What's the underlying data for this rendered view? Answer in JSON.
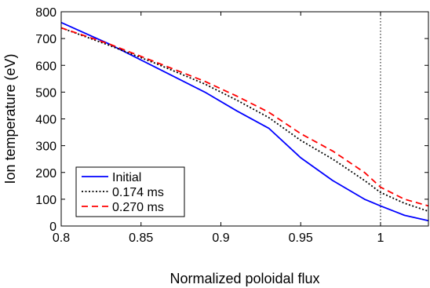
{
  "chart_data": {
    "type": "line",
    "xlabel": "Normalized poloidal flux",
    "ylabel": "Ion temperature (eV)",
    "xlim": [
      0.8,
      1.03
    ],
    "ylim": [
      0,
      800
    ],
    "xticks": [
      0.8,
      0.85,
      0.9,
      0.95,
      1
    ],
    "xtick_labels": [
      "0.8",
      "0.85",
      "0.9",
      "0.95",
      "1"
    ],
    "yticks": [
      0,
      100,
      200,
      300,
      400,
      500,
      600,
      700,
      800
    ],
    "ytick_labels": [
      "0",
      "100",
      "200",
      "300",
      "400",
      "500",
      "600",
      "700",
      "800"
    ],
    "grid": false,
    "legend_position": "bottom-left",
    "vertical_reference_line": {
      "x": 1.0,
      "style": "dotted",
      "color": "#000000"
    },
    "series": [
      {
        "name": "Initial",
        "color": "#0000ff",
        "style": "solid",
        "x": [
          0.8,
          0.83,
          0.86,
          0.89,
          0.91,
          0.93,
          0.95,
          0.97,
          0.99,
          1.0,
          1.015,
          1.03
        ],
        "y": [
          760,
          680,
          590,
          500,
          430,
          365,
          255,
          170,
          100,
          75,
          40,
          20
        ]
      },
      {
        "name": "0.174 ms",
        "color": "#000000",
        "style": "dotted",
        "x": [
          0.8,
          0.83,
          0.86,
          0.89,
          0.91,
          0.93,
          0.95,
          0.97,
          0.99,
          1.0,
          1.015,
          1.03
        ],
        "y": [
          740,
          675,
          605,
          530,
          470,
          405,
          320,
          250,
          170,
          125,
          85,
          55
        ]
      },
      {
        "name": "0.270 ms",
        "color": "#ff0000",
        "style": "dashed",
        "x": [
          0.8,
          0.83,
          0.86,
          0.89,
          0.91,
          0.93,
          0.95,
          0.97,
          0.99,
          1.0,
          1.015,
          1.03
        ],
        "y": [
          740,
          680,
          610,
          540,
          485,
          425,
          345,
          280,
          200,
          145,
          100,
          75
        ]
      }
    ]
  }
}
